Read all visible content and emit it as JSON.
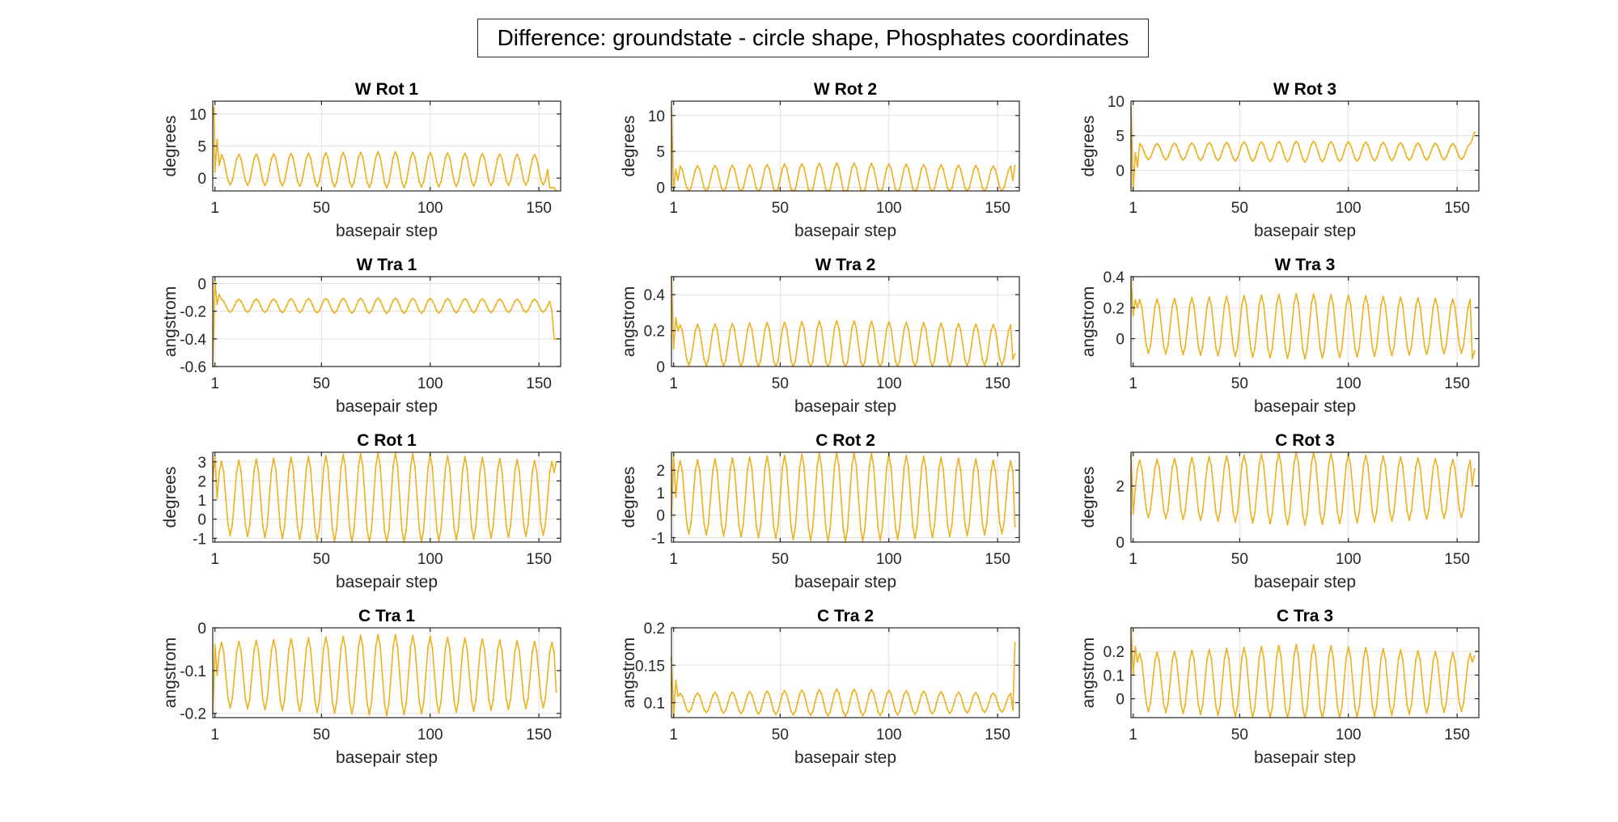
{
  "figure": {
    "suptitle": "Difference: groundstate - circle shape, Phosphates coordinates"
  },
  "style": {
    "line_color": "#EDB120",
    "axis_color": "#262626",
    "grid_color": "#e0e0e0"
  },
  "chart_data": [
    {
      "type": "line",
      "title": "W Rot 1",
      "xlabel": "basepair step",
      "ylabel": "degrees",
      "xlim": [
        0,
        160
      ],
      "ylim": [
        -2,
        12
      ],
      "xticks": [
        1,
        50,
        100,
        150
      ],
      "yticks": [
        0,
        5,
        10
      ],
      "grid": true,
      "series": [
        {
          "shape": "sinusoid",
          "x": [
            0,
            158
          ],
          "period": 8,
          "center": 1.3,
          "amplitude": [
            2.3,
            2.8,
            2.3
          ],
          "start": [
            [
              0,
              10
            ],
            [
              0.5,
              11
            ],
            [
              1,
              1
            ],
            [
              2,
              6
            ],
            [
              3,
              2
            ]
          ],
          "end": [
            [
              155,
              -1.5
            ],
            [
              156,
              -1.5
            ],
            [
              157,
              -1.5
            ],
            [
              158,
              -2
            ],
            [
              159,
              0
            ]
          ]
        }
      ]
    },
    {
      "type": "line",
      "title": "W Rot 2",
      "xlabel": "basepair step",
      "ylabel": "degrees",
      "xlim": [
        0,
        160
      ],
      "ylim": [
        -0.5,
        12
      ],
      "xticks": [
        1,
        50,
        100,
        150
      ],
      "yticks": [
        0,
        5,
        10
      ],
      "grid": true,
      "series": [
        {
          "shape": "sinusoid",
          "x": [
            0,
            158
          ],
          "period": 8,
          "center": 1.2,
          "amplitude": [
            1.7,
            2.2,
            1.7
          ],
          "start": [
            [
              0,
              11
            ],
            [
              1,
              -0.5
            ],
            [
              2,
              2.5
            ],
            [
              3,
              1
            ]
          ],
          "end": [
            [
              157,
              1
            ],
            [
              158,
              3
            ]
          ]
        }
      ]
    },
    {
      "type": "line",
      "title": "W Rot 3",
      "xlabel": "basepair step",
      "ylabel": "degrees",
      "xlim": [
        0,
        160
      ],
      "ylim": [
        -3,
        10
      ],
      "xticks": [
        1,
        50,
        100,
        150
      ],
      "yticks": [
        0,
        5,
        10
      ],
      "grid": true,
      "series": [
        {
          "shape": "sinusoid",
          "x": [
            0,
            158
          ],
          "period": 8,
          "center": 2.7,
          "amplitude": [
            1.1,
            1.5,
            1.1
          ],
          "start": [
            [
              0,
              9
            ],
            [
              1,
              -3
            ],
            [
              2,
              2.5
            ],
            [
              3,
              0.5
            ]
          ],
          "end": [
            [
              157,
              4.5
            ],
            [
              158,
              5.5
            ]
          ]
        }
      ]
    },
    {
      "type": "line",
      "title": "W Tra 1",
      "xlabel": "basepair step",
      "ylabel": "angstrom",
      "xlim": [
        0,
        160
      ],
      "ylim": [
        -0.6,
        0.05
      ],
      "xticks": [
        1,
        50,
        100,
        150
      ],
      "yticks": [
        -0.6,
        -0.4,
        -0.2,
        0
      ],
      "grid": true,
      "series": [
        {
          "shape": "sinusoid",
          "x": [
            0,
            158
          ],
          "period": 8,
          "center": -0.16,
          "amplitude": [
            0.045,
            0.055,
            0.045
          ],
          "start": [
            [
              0,
              -0.6
            ],
            [
              1,
              0.02
            ],
            [
              2,
              -0.15
            ],
            [
              3,
              -0.08
            ]
          ],
          "end": [
            [
              156,
              -0.2
            ],
            [
              157,
              -0.4
            ],
            [
              158,
              -0.4
            ]
          ]
        }
      ]
    },
    {
      "type": "line",
      "title": "W Tra 2",
      "xlabel": "basepair step",
      "ylabel": "angstrom",
      "xlim": [
        0,
        160
      ],
      "ylim": [
        0,
        0.5
      ],
      "xticks": [
        1,
        50,
        100,
        150
      ],
      "yticks": [
        0,
        0.2,
        0.4
      ],
      "grid": true,
      "series": [
        {
          "shape": "sinusoid",
          "x": [
            0,
            158
          ],
          "period": 8,
          "center": 0.12,
          "amplitude": [
            0.11,
            0.135,
            0.11
          ],
          "start": [
            [
              0,
              0.5
            ],
            [
              1,
              0.1
            ],
            [
              2,
              0.27
            ]
          ],
          "end": [
            [
              157,
              0.04
            ],
            [
              158,
              0.07
            ]
          ]
        }
      ]
    },
    {
      "type": "line",
      "title": "W Tra 3",
      "xlabel": "basepair step",
      "ylabel": "angstrom",
      "xlim": [
        0,
        160
      ],
      "ylim": [
        -0.18,
        0.4
      ],
      "xticks": [
        1,
        50,
        100,
        150
      ],
      "yticks": [
        0,
        0.2,
        0.4
      ],
      "grid": true,
      "series": [
        {
          "shape": "sinusoid",
          "x": [
            0,
            158
          ],
          "period": 8,
          "center": 0.08,
          "amplitude": [
            0.17,
            0.21,
            0.17
          ],
          "start": [
            [
              0,
              0.4
            ],
            [
              1,
              0.15
            ],
            [
              2,
              0.25
            ]
          ],
          "end": [
            [
              157,
              -0.13
            ],
            [
              158,
              -0.08
            ]
          ]
        }
      ]
    },
    {
      "type": "line",
      "title": "C Rot 1",
      "xlabel": "basepair step",
      "ylabel": "degrees",
      "xlim": [
        0,
        160
      ],
      "ylim": [
        -1.2,
        3.5
      ],
      "xticks": [
        1,
        50,
        100,
        150
      ],
      "yticks": [
        -1,
        0,
        1,
        2,
        3
      ],
      "grid": true,
      "series": [
        {
          "shape": "sinusoid",
          "x": [
            0,
            158
          ],
          "period": 8,
          "center": 1.1,
          "amplitude": [
            1.9,
            2.4,
            1.9
          ],
          "start": [
            [
              0,
              2
            ],
            [
              1,
              3.3
            ]
          ],
          "end": [
            [
              158,
              3
            ]
          ]
        }
      ]
    },
    {
      "type": "line",
      "title": "C Rot 2",
      "xlabel": "basepair step",
      "ylabel": "degrees",
      "xlim": [
        0,
        160
      ],
      "ylim": [
        -1.2,
        2.8
      ],
      "xticks": [
        1,
        50,
        100,
        150
      ],
      "yticks": [
        -1,
        0,
        1,
        2
      ],
      "grid": true,
      "series": [
        {
          "shape": "sinusoid",
          "x": [
            0,
            158
          ],
          "period": 8,
          "center": 0.8,
          "amplitude": [
            1.6,
            2.0,
            1.6
          ],
          "start": [
            [
              0,
              0
            ],
            [
              1,
              2.7
            ]
          ],
          "end": [
            [
              158,
              -0.5
            ]
          ]
        }
      ]
    },
    {
      "type": "line",
      "title": "C Rot 3",
      "xlabel": "basepair step",
      "ylabel": "degrees",
      "xlim": [
        0,
        160
      ],
      "ylim": [
        0,
        3.2
      ],
      "xticks": [
        1,
        50,
        100,
        150
      ],
      "yticks": [
        0,
        2
      ],
      "grid": true,
      "series": [
        {
          "shape": "sinusoid",
          "x": [
            0,
            158
          ],
          "period": 8,
          "center": 1.9,
          "amplitude": [
            1.0,
            1.3,
            1.0
          ],
          "start": [
            [
              0,
              3.1
            ],
            [
              1,
              1
            ]
          ],
          "end": [
            [
              157,
              2
            ],
            [
              158,
              2.6
            ]
          ]
        }
      ]
    },
    {
      "type": "line",
      "title": "C Tra 1",
      "xlabel": "basepair step",
      "ylabel": "angstrom",
      "xlim": [
        0,
        160
      ],
      "ylim": [
        -0.21,
        0
      ],
      "xticks": [
        1,
        50,
        100,
        150
      ],
      "yticks": [
        -0.2,
        -0.1,
        0
      ],
      "grid": true,
      "series": [
        {
          "shape": "sinusoid",
          "x": [
            0,
            158
          ],
          "period": 8,
          "center": -0.11,
          "amplitude": [
            0.075,
            0.095,
            0.075
          ],
          "start": [
            [
              0,
              -0.2
            ],
            [
              1,
              -0.04
            ]
          ],
          "end": [
            [
              158,
              -0.15
            ]
          ]
        }
      ]
    },
    {
      "type": "line",
      "title": "C Tra 2",
      "xlabel": "basepair step",
      "ylabel": "angstrom",
      "xlim": [
        0,
        160
      ],
      "ylim": [
        0.08,
        0.2
      ],
      "xticks": [
        1,
        50,
        100,
        150
      ],
      "yticks": [
        0.1,
        0.15,
        0.2
      ],
      "grid": true,
      "series": [
        {
          "shape": "sinusoid",
          "x": [
            0,
            158
          ],
          "period": 8,
          "center": 0.1,
          "amplitude": [
            0.012,
            0.018,
            0.012
          ],
          "start": [
            [
              0,
              0.16
            ],
            [
              1,
              0.08
            ],
            [
              2,
              0.13
            ]
          ],
          "end": [
            [
              157,
              0.09
            ],
            [
              158,
              0.18
            ]
          ]
        }
      ]
    },
    {
      "type": "line",
      "title": "C Tra 3",
      "xlabel": "basepair step",
      "ylabel": "angstrom",
      "xlim": [
        0,
        160
      ],
      "ylim": [
        -0.08,
        0.3
      ],
      "xticks": [
        1,
        50,
        100,
        150
      ],
      "yticks": [
        0,
        0.1,
        0.2
      ],
      "grid": true,
      "series": [
        {
          "shape": "sinusoid",
          "x": [
            0,
            158
          ],
          "period": 8,
          "center": 0.07,
          "amplitude": [
            0.12,
            0.16,
            0.12
          ],
          "start": [
            [
              0,
              0.3
            ],
            [
              1,
              0.1
            ],
            [
              2,
              0.22
            ]
          ],
          "end": [
            [
              158,
              0.18
            ]
          ]
        }
      ]
    }
  ]
}
